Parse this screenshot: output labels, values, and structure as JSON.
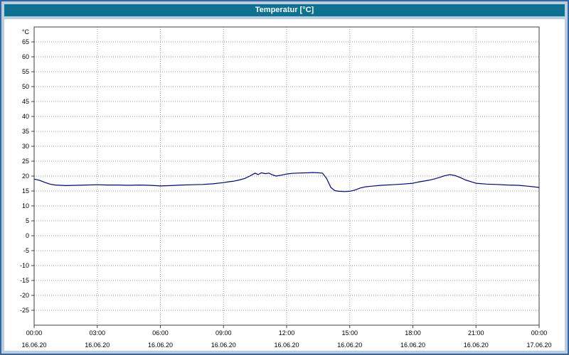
{
  "window": {
    "title": "Temperatur [°C]"
  },
  "chart_data": {
    "type": "line",
    "title": "Temperatur [°C]",
    "xlabel": "",
    "ylabel": "°C",
    "ylim": [
      -30,
      70
    ],
    "yticks": [
      -25,
      -20,
      -15,
      -10,
      -5,
      0,
      5,
      10,
      15,
      20,
      25,
      30,
      35,
      40,
      45,
      50,
      55,
      60,
      65
    ],
    "xlim_hours": [
      0,
      24
    ],
    "grid": true,
    "legend": "none",
    "colors": {
      "line": "#00008b",
      "grid": "#9a9a9a",
      "axis": "#404040",
      "titlebar": "#0d7191",
      "frame": "#b9cde0",
      "window_border": "#33679e"
    },
    "xticks": [
      {
        "hour": 0,
        "time": "00:00",
        "date": "16.06.20"
      },
      {
        "hour": 3,
        "time": "03:00",
        "date": "16.06.20"
      },
      {
        "hour": 6,
        "time": "06:00",
        "date": "16.06.20"
      },
      {
        "hour": 9,
        "time": "09:00",
        "date": "16.06.20"
      },
      {
        "hour": 12,
        "time": "12:00",
        "date": "16.06.20"
      },
      {
        "hour": 15,
        "time": "15:00",
        "date": "16.06.20"
      },
      {
        "hour": 18,
        "time": "18:00",
        "date": "16.06.20"
      },
      {
        "hour": 21,
        "time": "21:00",
        "date": "16.06.20"
      },
      {
        "hour": 24,
        "time": "00:00",
        "date": "17.06.20"
      }
    ],
    "series": [
      {
        "name": "Temperatur",
        "x_hours": [
          0,
          0.25,
          0.5,
          0.75,
          1,
          1.5,
          2,
          2.5,
          3,
          3.5,
          4,
          4.5,
          5,
          5.5,
          6,
          6.5,
          7,
          7.5,
          8,
          8.5,
          9,
          9.25,
          9.5,
          9.75,
          10,
          10.25,
          10.5,
          10.65,
          10.8,
          11,
          11.15,
          11.3,
          11.5,
          11.75,
          12,
          12.25,
          12.5,
          13,
          13.25,
          13.5,
          13.7,
          13.9,
          14.1,
          14.3,
          14.5,
          14.75,
          15,
          15.25,
          15.5,
          15.75,
          16,
          16.5,
          17,
          17.5,
          18,
          18.25,
          18.5,
          18.75,
          19,
          19.25,
          19.5,
          19.75,
          20,
          20.25,
          20.5,
          21,
          21.5,
          22,
          22.5,
          23,
          23.5,
          24
        ],
        "values": [
          19.0,
          18.6,
          17.9,
          17.3,
          17.0,
          16.8,
          16.9,
          17.0,
          17.1,
          17.0,
          17.0,
          16.9,
          17.0,
          16.9,
          16.7,
          16.8,
          17.0,
          17.1,
          17.2,
          17.4,
          17.8,
          18.1,
          18.3,
          18.7,
          19.2,
          20.0,
          21.0,
          20.5,
          21.1,
          20.8,
          21.0,
          20.5,
          20.0,
          20.3,
          20.7,
          20.9,
          21.0,
          21.1,
          21.2,
          21.1,
          21.0,
          19.2,
          16.2,
          15.1,
          14.9,
          14.8,
          14.9,
          15.3,
          16.0,
          16.4,
          16.6,
          16.9,
          17.1,
          17.3,
          17.6,
          18.0,
          18.3,
          18.6,
          19.0,
          19.5,
          20.1,
          20.5,
          20.2,
          19.5,
          18.7,
          17.6,
          17.3,
          17.2,
          17.0,
          16.9,
          16.6,
          16.2
        ]
      }
    ]
  }
}
